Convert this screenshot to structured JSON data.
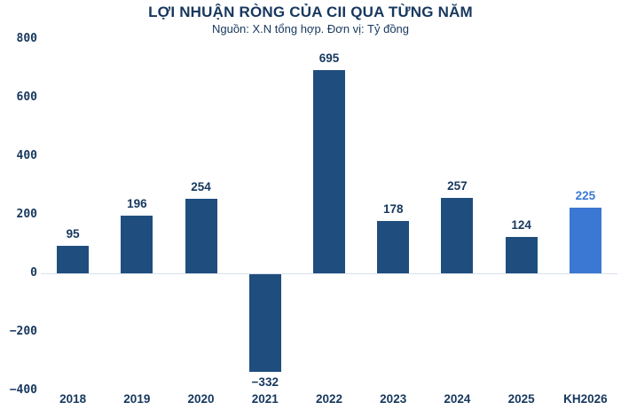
{
  "header": {
    "title": "LỢI NHUẬN RÒNG CỦA CII QUA TỪNG NĂM",
    "subtitle": "Nguồn: X.N tổng hợp. Đơn vị: Tỷ đồng"
  },
  "chart_data": {
    "type": "bar",
    "title": "LỢI NHUẬN RÒNG CỦA CII QUA TỪNG NĂM",
    "subtitle": "Nguồn: X.N tổng hợp. Đơn vị: Tỷ đồng",
    "categories": [
      "2018",
      "2019",
      "2020",
      "2021",
      "2022",
      "2023",
      "2024",
      "2025",
      "KH2026"
    ],
    "values": [
      95,
      196,
      254,
      -332,
      695,
      178,
      257,
      124,
      225
    ],
    "xlabel": "",
    "ylabel": "",
    "ylim": [
      -400,
      800
    ],
    "yticks": [
      800,
      600,
      400,
      200,
      0,
      -200,
      -400
    ],
    "grid": "zero-line-only",
    "legend": "none",
    "data_labels": "on",
    "highlight_index": 8,
    "colors": {
      "bar": "#1F4E7E",
      "highlight_bar": "#3B78D4",
      "title_text": "#17375E",
      "tick_text": "#17375E",
      "zero_line": "#D9E2EC",
      "background": "#FFFFFF"
    }
  }
}
